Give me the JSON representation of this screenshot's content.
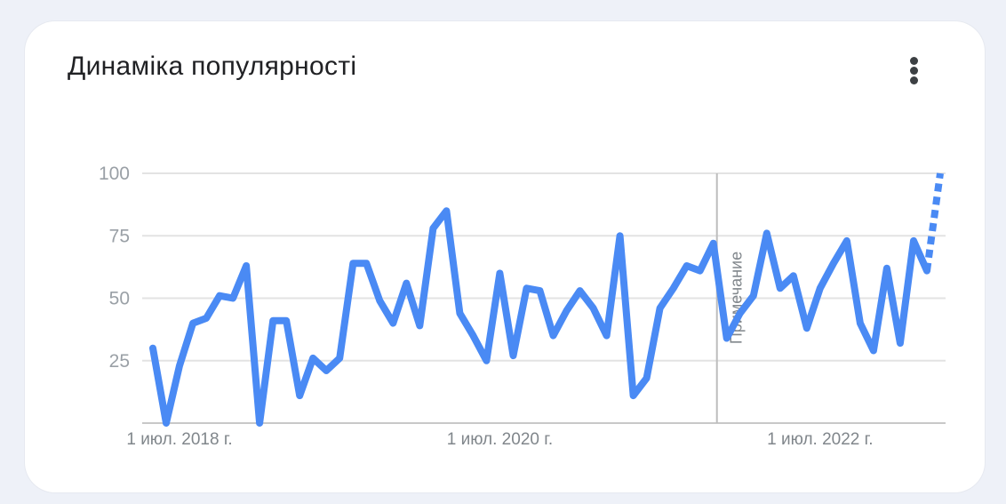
{
  "card": {
    "title": "Динамiка популярностi",
    "menu_icon": "more-vert-icon"
  },
  "colors": {
    "line": "#4a8af4",
    "grid": "#e3e3e3",
    "axis": "#c8c8c8",
    "annotation_line": "#bdbdbd"
  },
  "chart_data": {
    "type": "line",
    "title": "Динамiка популярностi",
    "xlabel": "",
    "ylabel": "",
    "ylim": [
      0,
      100
    ],
    "yticks": [
      25,
      50,
      75,
      100
    ],
    "xtick_labels": [
      "1 июл. 2018 г.",
      "1 июл. 2020 г.",
      "1 июл. 2022 г."
    ],
    "xtick_index": [
      2,
      26,
      50
    ],
    "annotation": {
      "label": "Примечание",
      "index": 42
    },
    "grid": true,
    "legend": "none",
    "series": [
      {
        "values": [
          30,
          0,
          23,
          40,
          42,
          51,
          50,
          63,
          0,
          41,
          41,
          11,
          26,
          21,
          26,
          64,
          64,
          49,
          40,
          56,
          39,
          78,
          85,
          44,
          35,
          25,
          60,
          27,
          54,
          53,
          35,
          45,
          53,
          46,
          35,
          75,
          11,
          18,
          46,
          54,
          63,
          61,
          72,
          34,
          44,
          51,
          76,
          54,
          59,
          38,
          54,
          64,
          73,
          40,
          29,
          62,
          32,
          73,
          61,
          100
        ],
        "partial_from_index": 58
      }
    ]
  }
}
